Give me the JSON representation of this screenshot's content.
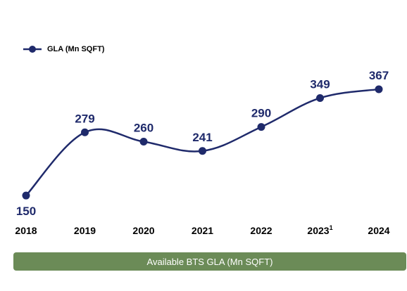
{
  "legend": {
    "label": "GLA (Mn SQFT)"
  },
  "banner": {
    "text": "Available BTS GLA (Mn SQFT)",
    "color": "#6b8b57"
  },
  "colors": {
    "series": "#1f2a6b"
  },
  "chart_data": {
    "type": "line",
    "categories": [
      "2018",
      "2019",
      "2020",
      "2021",
      "2022",
      "2023",
      "2024"
    ],
    "category_footnotes": {
      "2023": "1"
    },
    "series": [
      {
        "name": "GLA (Mn SQFT)",
        "values": [
          150,
          279,
          260,
          241,
          290,
          349,
          367
        ]
      }
    ],
    "data_labels": true,
    "grid": false,
    "legend_position": "top-left",
    "ylim": [
      90,
      420
    ]
  }
}
